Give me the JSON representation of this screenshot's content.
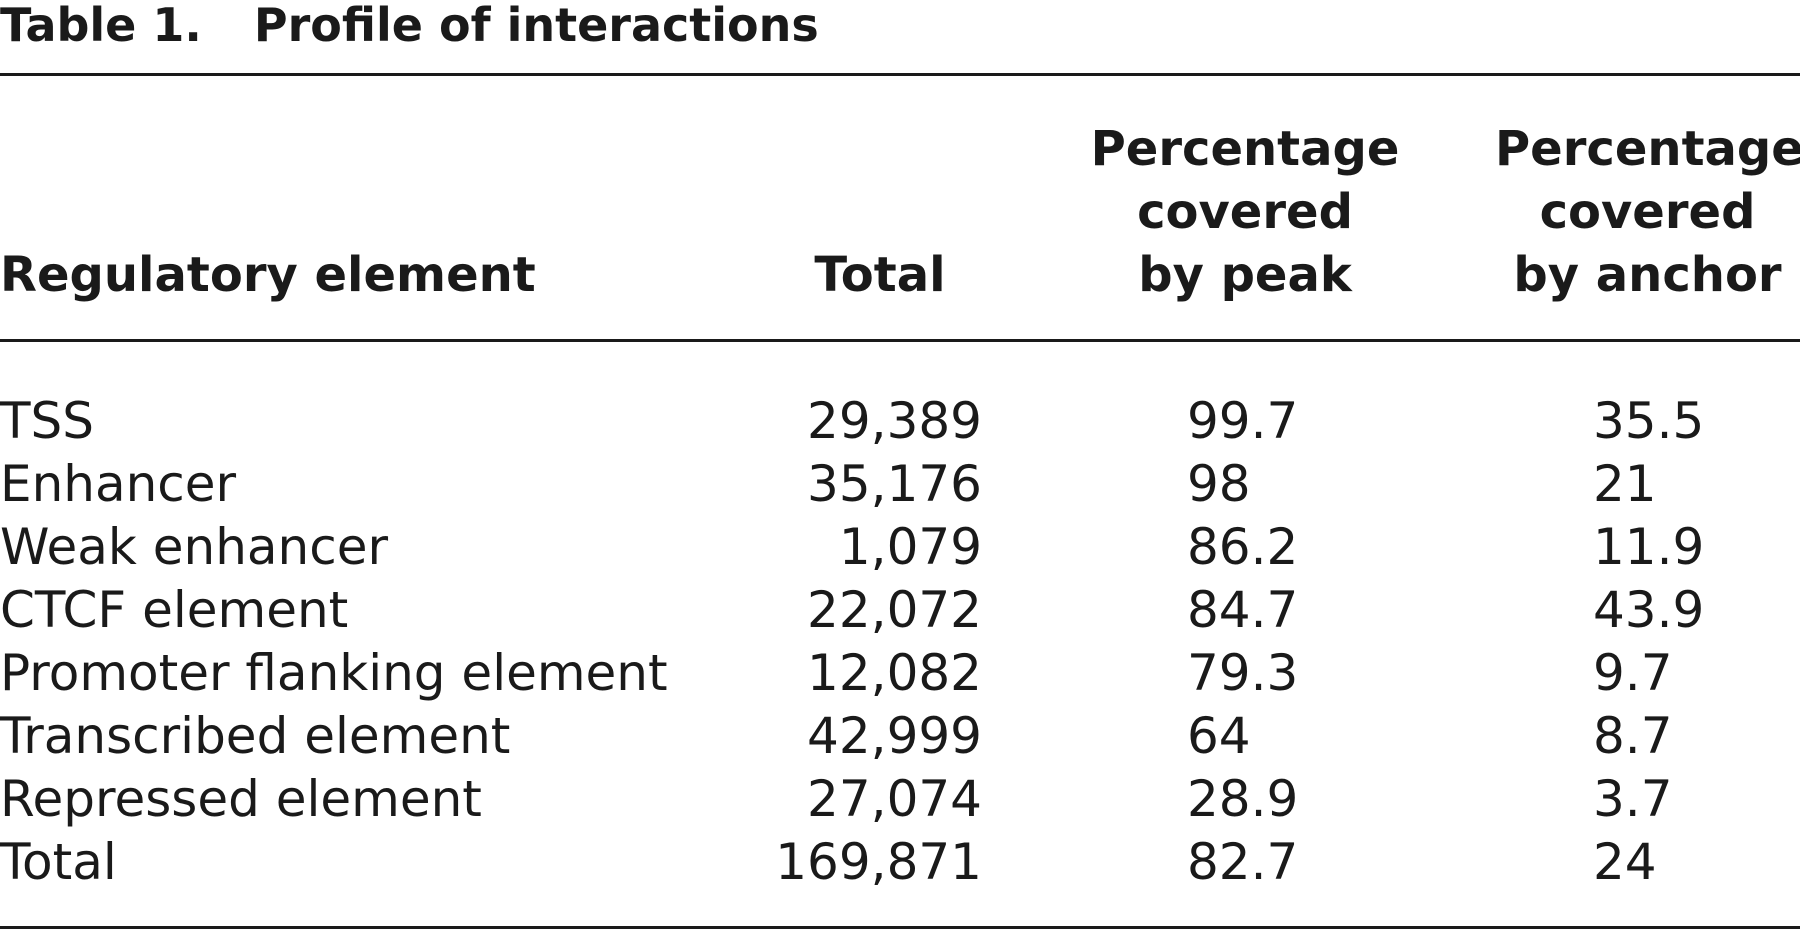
{
  "caption": {
    "number": "Table 1.",
    "title": "Profile of interactions"
  },
  "header": {
    "col0": "Regulatory element",
    "col1": "Total",
    "col2": [
      "Percentage",
      "covered",
      "by peak"
    ],
    "col3": [
      "Percentage",
      "covered",
      "by anchor"
    ]
  },
  "rows": [
    {
      "name": "TSS",
      "total": "29,389",
      "peak": "99.7",
      "anchor": "35.5"
    },
    {
      "name": "Enhancer",
      "total": "35,176",
      "peak": "98",
      "anchor": "21"
    },
    {
      "name": "Weak enhancer",
      "total": "1,079",
      "peak": "86.2",
      "anchor": "11.9"
    },
    {
      "name": "CTCF element",
      "total": "22,072",
      "peak": "84.7",
      "anchor": "43.9"
    },
    {
      "name": "Promoter flanking element",
      "total": "12,082",
      "peak": "79.3",
      "anchor": "9.7"
    },
    {
      "name": "Transcribed element",
      "total": "42,999",
      "peak": "64",
      "anchor": "8.7"
    },
    {
      "name": "Repressed element",
      "total": "27,074",
      "peak": "28.9",
      "anchor": "3.7"
    },
    {
      "name": "Total",
      "total": "169,871",
      "peak": "82.7",
      "anchor": "24"
    }
  ]
}
